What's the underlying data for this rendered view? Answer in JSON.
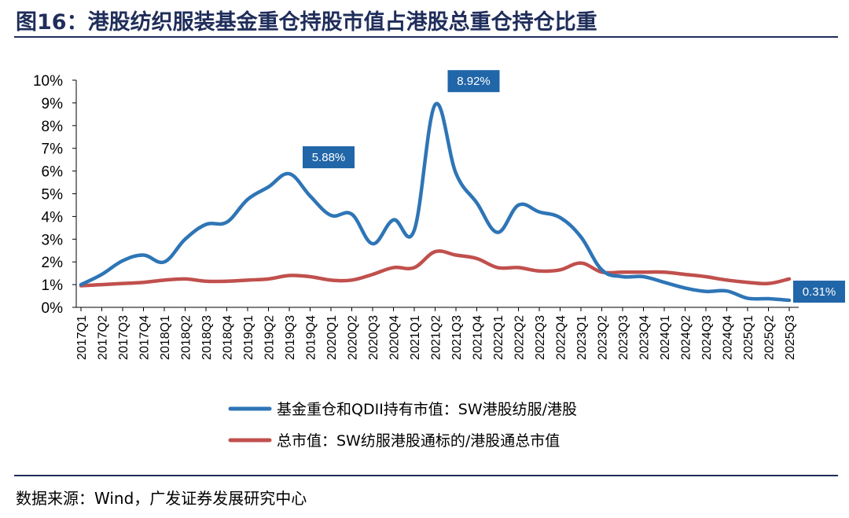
{
  "title": "图16：港股纺织服装基金重仓持股市值占港股总重仓持仓比重",
  "source": "数据来源：Wind，广发证券发展研究中心",
  "colors": {
    "blue": "#2e75b6",
    "red": "#c0504d",
    "label_bg": "#2166a8",
    "rule": "#1f2d5a"
  },
  "chart_data": {
    "type": "line",
    "categories": [
      "2017Q1",
      "2017Q2",
      "2017Q3",
      "2017Q4",
      "2018Q1",
      "2018Q2",
      "2018Q3",
      "2018Q4",
      "2019Q1",
      "2019Q2",
      "2019Q3",
      "2019Q4",
      "2020Q1",
      "2020Q2",
      "2020Q3",
      "2020Q4",
      "2021Q1",
      "2021Q2",
      "2021Q3",
      "2021Q4",
      "2022Q1",
      "2022Q2",
      "2022Q3",
      "2022Q4",
      "2023Q1",
      "2023Q2",
      "2023Q3",
      "2023Q4",
      "2024Q1",
      "2024Q2",
      "2024Q3",
      "2024Q4",
      "2025Q1",
      "2025Q2",
      "2025Q3"
    ],
    "ylim": [
      0,
      10
    ],
    "yticks": [
      "0%",
      "1%",
      "2%",
      "3%",
      "4%",
      "5%",
      "6%",
      "7%",
      "8%",
      "9%",
      "10%"
    ],
    "series": [
      {
        "name": "基金重仓和QDII持有市值：SW港股纺服/港股",
        "color": "#2e75b6",
        "values": [
          1.0,
          1.45,
          2.05,
          2.3,
          2.0,
          3.0,
          3.65,
          3.75,
          4.75,
          5.3,
          5.88,
          4.9,
          4.05,
          4.1,
          2.8,
          3.85,
          3.4,
          8.92,
          5.9,
          4.6,
          3.3,
          4.5,
          4.2,
          3.95,
          3.1,
          1.65,
          1.35,
          1.35,
          1.1,
          0.85,
          0.7,
          0.72,
          0.4,
          0.38,
          0.31
        ]
      },
      {
        "name": "总市值：SW纺服港股通标的/港股通总市值",
        "color": "#c0504d",
        "values": [
          0.95,
          1.0,
          1.05,
          1.1,
          1.2,
          1.25,
          1.15,
          1.15,
          1.2,
          1.25,
          1.4,
          1.35,
          1.2,
          1.2,
          1.45,
          1.75,
          1.75,
          2.45,
          2.3,
          2.15,
          1.75,
          1.75,
          1.6,
          1.65,
          1.95,
          1.55,
          1.55,
          1.55,
          1.55,
          1.45,
          1.35,
          1.2,
          1.1,
          1.05,
          1.25
        ]
      }
    ],
    "annotations": [
      {
        "series": 0,
        "index": 10,
        "text": "5.88%"
      },
      {
        "series": 0,
        "index": 17,
        "text": "8.92%"
      },
      {
        "series": 0,
        "index": 34,
        "text": "0.31%"
      }
    ],
    "legend": "bottom"
  }
}
